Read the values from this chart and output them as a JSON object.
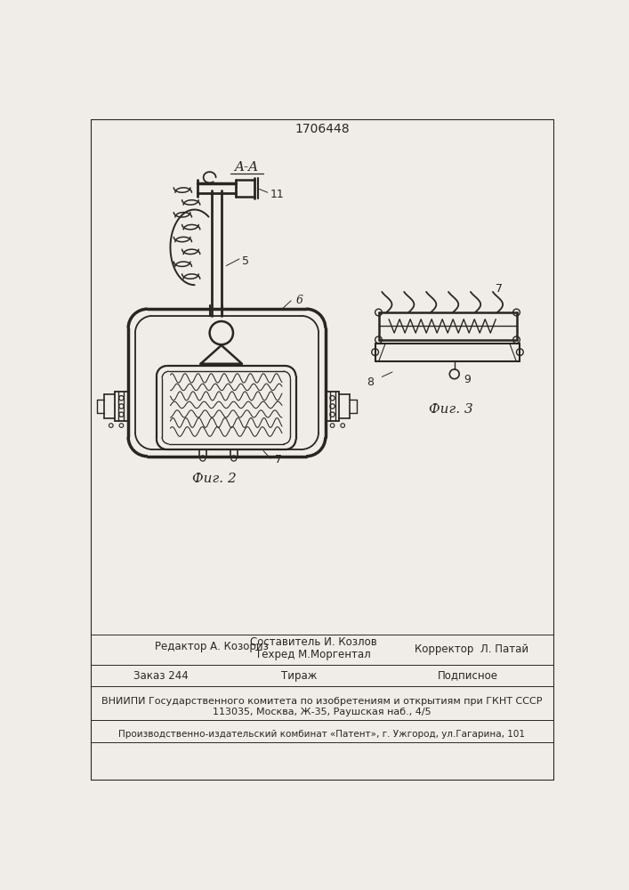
{
  "patent_number": "1706448",
  "bg": "#f0ede8",
  "lc": "#2a2520",
  "section_label": "A-A",
  "label_5": "5",
  "label_6": "6",
  "label_7": "7",
  "label_8": "8",
  "label_9": "9",
  "label_11": "11",
  "fig2_label": "Фиг. 2",
  "fig3_label": "Фиг. 3",
  "footer_editor": "Редактор А. Козориз",
  "footer_comp1": "Составитель И. Козлов",
  "footer_comp2": "Техред М.Моргентал",
  "footer_corr": "Корректор  Л. Патай",
  "footer_order": "Заказ 244",
  "footer_tirazh": "Тираж",
  "footer_podpisnoe": "Подписное",
  "footer_vnipi": "ВНИИПИ Государственного комитета по изобретениям и открытиям при ГКНТ СССР",
  "footer_addr": "113035, Москва, Ж-35, Раушская наб., 4/5",
  "footer_plant": "Производственно-издательский комбинат «Патент», г. Ужгород, ул.Гагарина, 101"
}
